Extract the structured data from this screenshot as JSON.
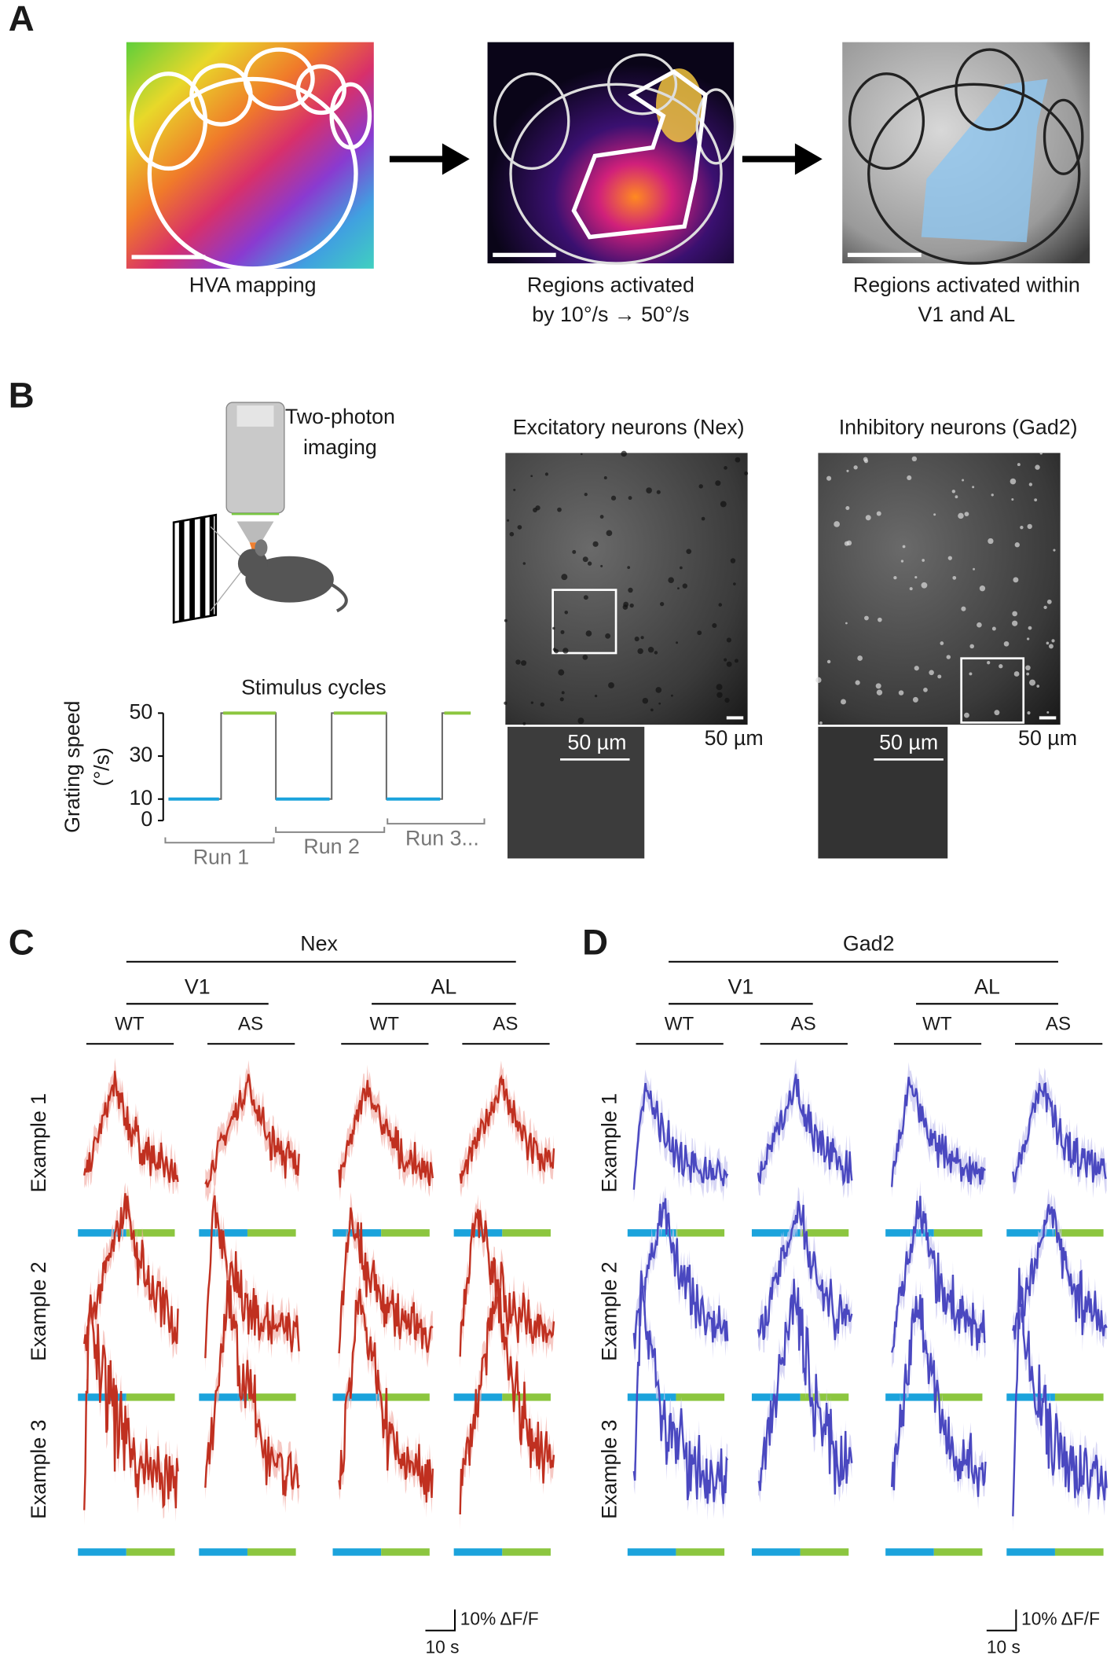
{
  "panel_a": {
    "letter": "A",
    "captions": [
      [
        "HVA mapping"
      ],
      [
        "Regions activated",
        "by 10°/s → 50°/s"
      ],
      [
        "Regions activated within",
        "V1 and AL"
      ]
    ]
  },
  "panel_b": {
    "letter": "B",
    "imaging_label": [
      "Two-photon",
      "imaging"
    ],
    "stimulus": {
      "title": "Stimulus cycles",
      "ylabel": [
        "Grating speed",
        "(°/s)"
      ],
      "ylim": [
        0,
        50
      ],
      "yticks": [
        0,
        10,
        30,
        50
      ],
      "low_speed": 10,
      "high_speed": 50,
      "runs": [
        "Run 1",
        "Run 2",
        "Run 3..."
      ]
    },
    "images": [
      {
        "title": "Excitatory neurons (Nex)",
        "scale": "50 µm",
        "inset_scale": "50 µm"
      },
      {
        "title": "Inhibitory neurons (Gad2)",
        "scale": "50 µm",
        "inset_scale": "50 µm"
      }
    ]
  },
  "panel_c": {
    "letter": "C",
    "group": "Nex",
    "areas": [
      "V1",
      "AL"
    ],
    "genotypes": [
      "WT",
      "AS",
      "WT",
      "AS"
    ],
    "rows": [
      "Example 1",
      "Example 2",
      "Example 3"
    ],
    "scalebar_y": "10% ΔF/F",
    "scalebar_x": "10 s"
  },
  "panel_d": {
    "letter": "D",
    "group": "Gad2",
    "areas": [
      "V1",
      "AL"
    ],
    "genotypes": [
      "WT",
      "AS",
      "WT",
      "AS"
    ],
    "rows": [
      "Example 1",
      "Example 2",
      "Example 3"
    ],
    "scalebar_y": "10% ΔF/F",
    "scalebar_x": "10 s"
  }
}
